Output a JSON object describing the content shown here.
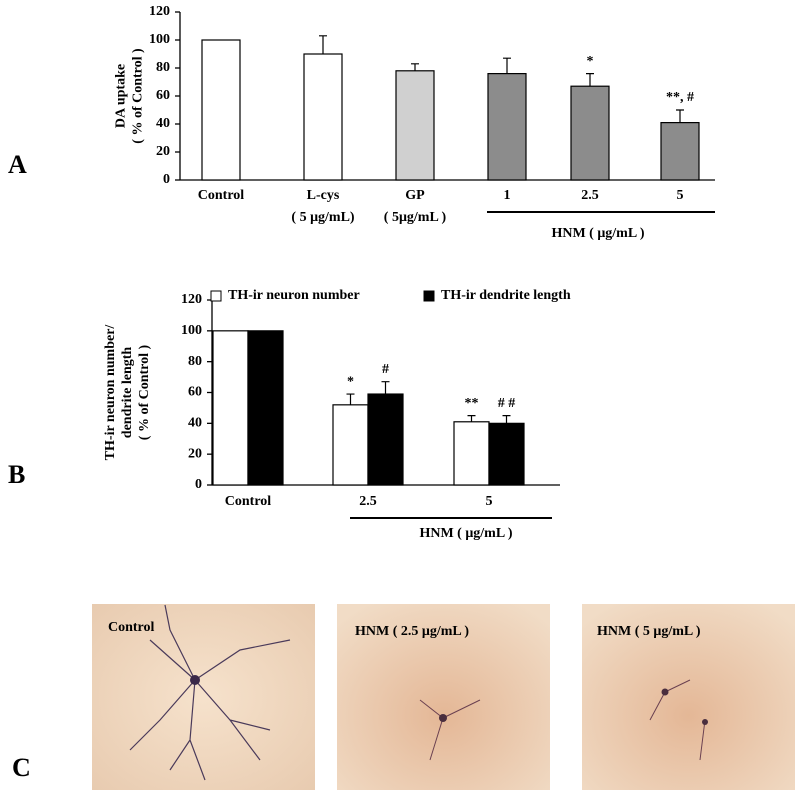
{
  "panel_labels": [
    "A",
    "B",
    "C"
  ],
  "chart_data": [
    {
      "type": "bar",
      "ylabel": [
        "DA uptake",
        "( % of Control )"
      ],
      "categories": [
        "Control",
        "L-cys",
        "GP",
        "1",
        "2.5",
        "5"
      ],
      "category_sublabels": [
        null,
        "( 5 μg/mL)",
        "(  5μg/mL )",
        null,
        null,
        null
      ],
      "group_label": "HNM ( μg/mL )",
      "series": [
        {
          "colors": [
            "#ffffff",
            "#ffffff",
            "#d0d0d0",
            "#8c8c8c",
            "#8c8c8c",
            "#8c8c8c"
          ],
          "values": [
            100,
            90,
            78,
            76,
            67,
            41
          ],
          "errors": [
            0,
            13,
            5,
            11,
            9,
            9
          ],
          "annotations": [
            null,
            null,
            null,
            null,
            "*",
            "**, #"
          ]
        }
      ],
      "ylim": [
        0,
        120
      ],
      "yticks": [
        0,
        20,
        40,
        60,
        80,
        100,
        120
      ]
    },
    {
      "type": "bar",
      "ylabel": [
        "TH-ir neuron number/",
        "dendrite length",
        "( % of Control )"
      ],
      "categories": [
        "Control",
        "2.5",
        "5"
      ],
      "group_label": "HNM ( μg/mL )",
      "series": [
        {
          "name": "TH-ir neuron number",
          "color": "#ffffff",
          "values": [
            100,
            52,
            41
          ],
          "errors": [
            0,
            7,
            4
          ],
          "annotations": [
            null,
            "*",
            "**"
          ]
        },
        {
          "name": "TH-ir dendrite length",
          "color": "#000000",
          "values": [
            100,
            59,
            40
          ],
          "errors": [
            0,
            8,
            5
          ],
          "annotations": [
            null,
            "#",
            "# #"
          ]
        }
      ],
      "ylim": [
        0,
        120
      ],
      "yticks": [
        0,
        20,
        40,
        60,
        80,
        100,
        120
      ]
    }
  ],
  "photos": [
    {
      "label": "Control"
    },
    {
      "label": "HNM ( 2.5 μg/mL )"
    },
    {
      "label": "HNM ( 5 μg/mL )"
    }
  ]
}
